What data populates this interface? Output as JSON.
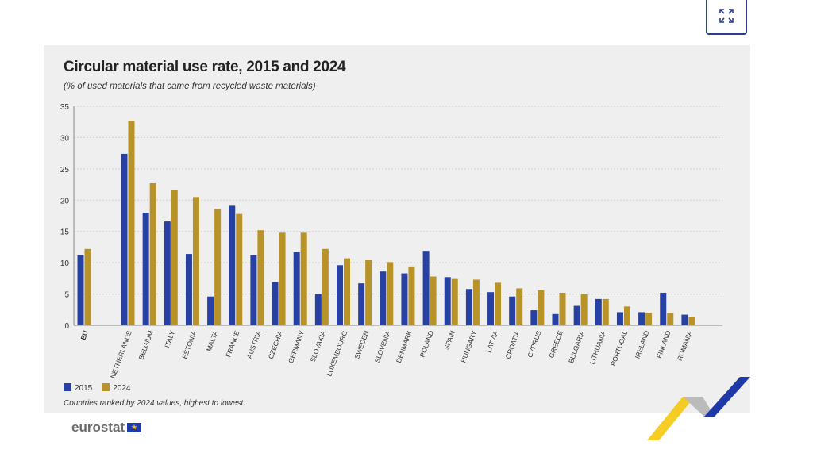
{
  "fullscreen_button": {
    "icon": "expand-icon"
  },
  "branding": {
    "logo": "eurostat"
  },
  "chart_data": {
    "type": "bar",
    "title": "Circular material use rate, 2015 and 2024",
    "subtitle": "(% of used materials that came from recycled waste materials)",
    "note": "Countries ranked by 2024 values, highest to lowest.",
    "xlabel": "",
    "ylabel": "",
    "ylim": [
      0,
      35
    ],
    "yticks": [
      "0",
      "5",
      "10",
      "15",
      "20",
      "25",
      "30",
      "35"
    ],
    "grid": true,
    "legend_position": "bottom-left",
    "categories": [
      "EU",
      "NETHERLANDS",
      "BELGIUM",
      "ITALY",
      "ESTONIA",
      "MALTA",
      "FRANCE",
      "AUSTRIA",
      "CZECHIA",
      "GERMANY",
      "SLOVAKIA",
      "LUXEMBOURG",
      "SWEDEN",
      "SLOVENIA",
      "DENMARK",
      "POLAND",
      "SPAIN",
      "HUNGARY",
      "LATVIA",
      "CROATIA",
      "CYPRUS",
      "GREECE",
      "BULGARIA",
      "LITHUANIA",
      "PORTUGAL",
      "IRELAND",
      "FINLAND",
      "ROMANIA"
    ],
    "series": [
      {
        "name": "2015",
        "color": "#2640a4",
        "values": [
          11.2,
          27.4,
          18.0,
          16.6,
          11.4,
          4.6,
          19.1,
          11.2,
          6.9,
          11.7,
          5.0,
          9.6,
          6.7,
          8.6,
          8.3,
          11.9,
          7.7,
          5.8,
          5.3,
          4.6,
          2.4,
          1.8,
          3.1,
          4.2,
          2.1,
          2.1,
          5.2,
          1.7
        ]
      },
      {
        "name": "2024",
        "color": "#b8932a",
        "values": [
          12.2,
          32.7,
          22.7,
          21.6,
          20.5,
          18.6,
          17.8,
          15.2,
          14.8,
          14.8,
          12.2,
          10.7,
          10.4,
          10.1,
          9.4,
          7.8,
          7.4,
          7.3,
          6.8,
          5.9,
          5.6,
          5.2,
          5.0,
          4.2,
          3.0,
          2.0,
          2.0,
          1.3
        ]
      }
    ]
  }
}
